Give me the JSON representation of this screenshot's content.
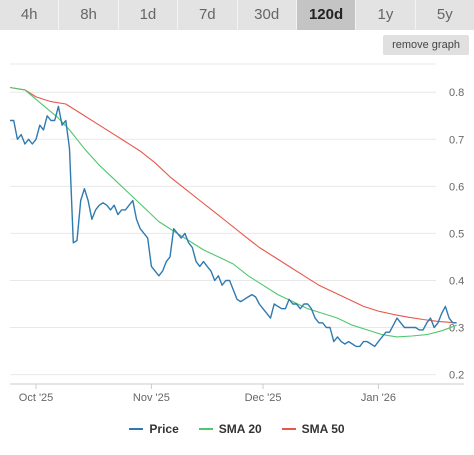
{
  "range_tabs": [
    {
      "label": "4h"
    },
    {
      "label": "8h"
    },
    {
      "label": "1d"
    },
    {
      "label": "7d"
    },
    {
      "label": "30d"
    },
    {
      "label": "120d",
      "active": true
    },
    {
      "label": "1y"
    },
    {
      "label": "5y"
    }
  ],
  "remove_graph_label": "remove graph",
  "chart_data": {
    "type": "line",
    "ylim": [
      0.18,
      0.86
    ],
    "y_ticks": [
      {
        "value": 0.2,
        "label": "0.2"
      },
      {
        "value": 0.3,
        "label": "0.3"
      },
      {
        "value": 0.4,
        "label": "0.4"
      },
      {
        "value": 0.5,
        "label": "0.5"
      },
      {
        "value": 0.6,
        "label": "0.6"
      },
      {
        "value": 0.7,
        "label": "0.7"
      },
      {
        "value": 0.8,
        "label": "0.8"
      }
    ],
    "xlim": [
      "2025-09-24",
      "2026-01-24"
    ],
    "x_ticks": [
      {
        "date": "2025-10-01",
        "label": "Oct '25"
      },
      {
        "date": "2025-11-01",
        "label": "Nov '25"
      },
      {
        "date": "2025-12-01",
        "label": "Dec '25"
      },
      {
        "date": "2026-01-01",
        "label": "Jan '26"
      }
    ],
    "grid": true,
    "legend_position": "bottom",
    "series": [
      {
        "name": "Price",
        "color": "#2f7ab1",
        "points": [
          [
            "2025-09-24",
            0.74
          ],
          [
            "2025-09-25",
            0.74
          ],
          [
            "2025-09-26",
            0.7
          ],
          [
            "2025-09-27",
            0.71
          ],
          [
            "2025-09-28",
            0.69
          ],
          [
            "2025-09-29",
            0.7
          ],
          [
            "2025-09-30",
            0.69
          ],
          [
            "2025-10-01",
            0.7
          ],
          [
            "2025-10-02",
            0.73
          ],
          [
            "2025-10-03",
            0.72
          ],
          [
            "2025-10-04",
            0.75
          ],
          [
            "2025-10-05",
            0.74
          ],
          [
            "2025-10-06",
            0.74
          ],
          [
            "2025-10-07",
            0.77
          ],
          [
            "2025-10-08",
            0.73
          ],
          [
            "2025-10-09",
            0.74
          ],
          [
            "2025-10-10",
            0.68
          ],
          [
            "2025-10-11",
            0.48
          ],
          [
            "2025-10-12",
            0.485
          ],
          [
            "2025-10-13",
            0.57
          ],
          [
            "2025-10-14",
            0.595
          ],
          [
            "2025-10-15",
            0.57
          ],
          [
            "2025-10-16",
            0.53
          ],
          [
            "2025-10-17",
            0.55
          ],
          [
            "2025-10-18",
            0.56
          ],
          [
            "2025-10-19",
            0.565
          ],
          [
            "2025-10-20",
            0.56
          ],
          [
            "2025-10-21",
            0.55
          ],
          [
            "2025-10-22",
            0.56
          ],
          [
            "2025-10-23",
            0.54
          ],
          [
            "2025-10-24",
            0.55
          ],
          [
            "2025-10-25",
            0.55
          ],
          [
            "2025-10-26",
            0.56
          ],
          [
            "2025-10-27",
            0.57
          ],
          [
            "2025-10-28",
            0.53
          ],
          [
            "2025-10-29",
            0.51
          ],
          [
            "2025-10-30",
            0.5
          ],
          [
            "2025-10-31",
            0.49
          ],
          [
            "2025-11-01",
            0.43
          ],
          [
            "2025-11-02",
            0.42
          ],
          [
            "2025-11-03",
            0.41
          ],
          [
            "2025-11-04",
            0.42
          ],
          [
            "2025-11-05",
            0.44
          ],
          [
            "2025-11-06",
            0.45
          ],
          [
            "2025-11-07",
            0.51
          ],
          [
            "2025-11-08",
            0.5
          ],
          [
            "2025-11-09",
            0.49
          ],
          [
            "2025-11-10",
            0.5
          ],
          [
            "2025-11-11",
            0.48
          ],
          [
            "2025-11-12",
            0.47
          ],
          [
            "2025-11-13",
            0.44
          ],
          [
            "2025-11-14",
            0.43
          ],
          [
            "2025-11-15",
            0.44
          ],
          [
            "2025-11-16",
            0.43
          ],
          [
            "2025-11-17",
            0.42
          ],
          [
            "2025-11-18",
            0.4
          ],
          [
            "2025-11-19",
            0.41
          ],
          [
            "2025-11-20",
            0.39
          ],
          [
            "2025-11-21",
            0.4
          ],
          [
            "2025-11-22",
            0.4
          ],
          [
            "2025-11-23",
            0.38
          ],
          [
            "2025-11-24",
            0.36
          ],
          [
            "2025-11-25",
            0.355
          ],
          [
            "2025-11-26",
            0.36
          ],
          [
            "2025-11-27",
            0.365
          ],
          [
            "2025-11-28",
            0.37
          ],
          [
            "2025-11-29",
            0.365
          ],
          [
            "2025-11-30",
            0.35
          ],
          [
            "2025-12-01",
            0.34
          ],
          [
            "2025-12-02",
            0.33
          ],
          [
            "2025-12-03",
            0.32
          ],
          [
            "2025-12-04",
            0.35
          ],
          [
            "2025-12-05",
            0.345
          ],
          [
            "2025-12-06",
            0.34
          ],
          [
            "2025-12-07",
            0.34
          ],
          [
            "2025-12-08",
            0.36
          ],
          [
            "2025-12-09",
            0.35
          ],
          [
            "2025-12-10",
            0.35
          ],
          [
            "2025-12-11",
            0.34
          ],
          [
            "2025-12-12",
            0.35
          ],
          [
            "2025-12-13",
            0.35
          ],
          [
            "2025-12-14",
            0.34
          ],
          [
            "2025-12-15",
            0.32
          ],
          [
            "2025-12-16",
            0.31
          ],
          [
            "2025-12-17",
            0.31
          ],
          [
            "2025-12-18",
            0.3
          ],
          [
            "2025-12-19",
            0.3
          ],
          [
            "2025-12-20",
            0.27
          ],
          [
            "2025-12-21",
            0.28
          ],
          [
            "2025-12-22",
            0.27
          ],
          [
            "2025-12-23",
            0.265
          ],
          [
            "2025-12-24",
            0.27
          ],
          [
            "2025-12-25",
            0.265
          ],
          [
            "2025-12-26",
            0.26
          ],
          [
            "2025-12-27",
            0.26
          ],
          [
            "2025-12-28",
            0.27
          ],
          [
            "2025-12-29",
            0.27
          ],
          [
            "2025-12-30",
            0.265
          ],
          [
            "2025-12-31",
            0.26
          ],
          [
            "2026-01-01",
            0.27
          ],
          [
            "2026-01-02",
            0.28
          ],
          [
            "2026-01-03",
            0.29
          ],
          [
            "2026-01-04",
            0.29
          ],
          [
            "2026-01-05",
            0.305
          ],
          [
            "2026-01-06",
            0.32
          ],
          [
            "2026-01-07",
            0.31
          ],
          [
            "2026-01-08",
            0.3
          ],
          [
            "2026-01-09",
            0.3
          ],
          [
            "2026-01-10",
            0.3
          ],
          [
            "2026-01-11",
            0.3
          ],
          [
            "2026-01-12",
            0.295
          ],
          [
            "2026-01-13",
            0.295
          ],
          [
            "2026-01-14",
            0.31
          ],
          [
            "2026-01-15",
            0.32
          ],
          [
            "2026-01-16",
            0.3
          ],
          [
            "2026-01-17",
            0.31
          ],
          [
            "2026-01-18",
            0.33
          ],
          [
            "2026-01-19",
            0.345
          ],
          [
            "2026-01-20",
            0.32
          ],
          [
            "2026-01-21",
            0.31
          ],
          [
            "2026-01-22",
            0.31
          ]
        ]
      },
      {
        "name": "SMA 20",
        "color": "#4fc76f",
        "points": [
          [
            "2025-09-24",
            0.81
          ],
          [
            "2025-09-28",
            0.805
          ],
          [
            "2025-10-01",
            0.785
          ],
          [
            "2025-10-04",
            0.765
          ],
          [
            "2025-10-07",
            0.745
          ],
          [
            "2025-10-10",
            0.72
          ],
          [
            "2025-10-14",
            0.68
          ],
          [
            "2025-10-18",
            0.645
          ],
          [
            "2025-10-22",
            0.615
          ],
          [
            "2025-10-26",
            0.585
          ],
          [
            "2025-10-30",
            0.555
          ],
          [
            "2025-11-03",
            0.525
          ],
          [
            "2025-11-07",
            0.505
          ],
          [
            "2025-11-11",
            0.485
          ],
          [
            "2025-11-15",
            0.465
          ],
          [
            "2025-11-19",
            0.45
          ],
          [
            "2025-11-23",
            0.435
          ],
          [
            "2025-11-27",
            0.41
          ],
          [
            "2025-12-01",
            0.39
          ],
          [
            "2025-12-05",
            0.37
          ],
          [
            "2025-12-09",
            0.355
          ],
          [
            "2025-12-13",
            0.34
          ],
          [
            "2025-12-17",
            0.33
          ],
          [
            "2025-12-21",
            0.32
          ],
          [
            "2025-12-25",
            0.305
          ],
          [
            "2025-12-29",
            0.295
          ],
          [
            "2026-01-02",
            0.285
          ],
          [
            "2026-01-06",
            0.28
          ],
          [
            "2026-01-10",
            0.282
          ],
          [
            "2026-01-14",
            0.285
          ],
          [
            "2026-01-18",
            0.293
          ],
          [
            "2026-01-22",
            0.305
          ]
        ]
      },
      {
        "name": "SMA 50",
        "color": "#e8574a",
        "points": [
          [
            "2025-09-24",
            0.81
          ],
          [
            "2025-09-28",
            0.805
          ],
          [
            "2025-10-01",
            0.79
          ],
          [
            "2025-10-05",
            0.78
          ],
          [
            "2025-10-09",
            0.775
          ],
          [
            "2025-10-13",
            0.755
          ],
          [
            "2025-10-17",
            0.735
          ],
          [
            "2025-10-21",
            0.715
          ],
          [
            "2025-10-25",
            0.695
          ],
          [
            "2025-10-29",
            0.675
          ],
          [
            "2025-11-02",
            0.65
          ],
          [
            "2025-11-06",
            0.62
          ],
          [
            "2025-11-10",
            0.595
          ],
          [
            "2025-11-14",
            0.57
          ],
          [
            "2025-11-18",
            0.545
          ],
          [
            "2025-11-22",
            0.52
          ],
          [
            "2025-11-26",
            0.495
          ],
          [
            "2025-11-30",
            0.47
          ],
          [
            "2025-12-04",
            0.45
          ],
          [
            "2025-12-08",
            0.43
          ],
          [
            "2025-12-12",
            0.41
          ],
          [
            "2025-12-16",
            0.39
          ],
          [
            "2025-12-20",
            0.375
          ],
          [
            "2025-12-24",
            0.36
          ],
          [
            "2025-12-28",
            0.345
          ],
          [
            "2026-01-01",
            0.335
          ],
          [
            "2026-01-05",
            0.328
          ],
          [
            "2026-01-09",
            0.322
          ],
          [
            "2026-01-13",
            0.317
          ],
          [
            "2026-01-17",
            0.313
          ],
          [
            "2026-01-22",
            0.31
          ]
        ]
      }
    ]
  }
}
